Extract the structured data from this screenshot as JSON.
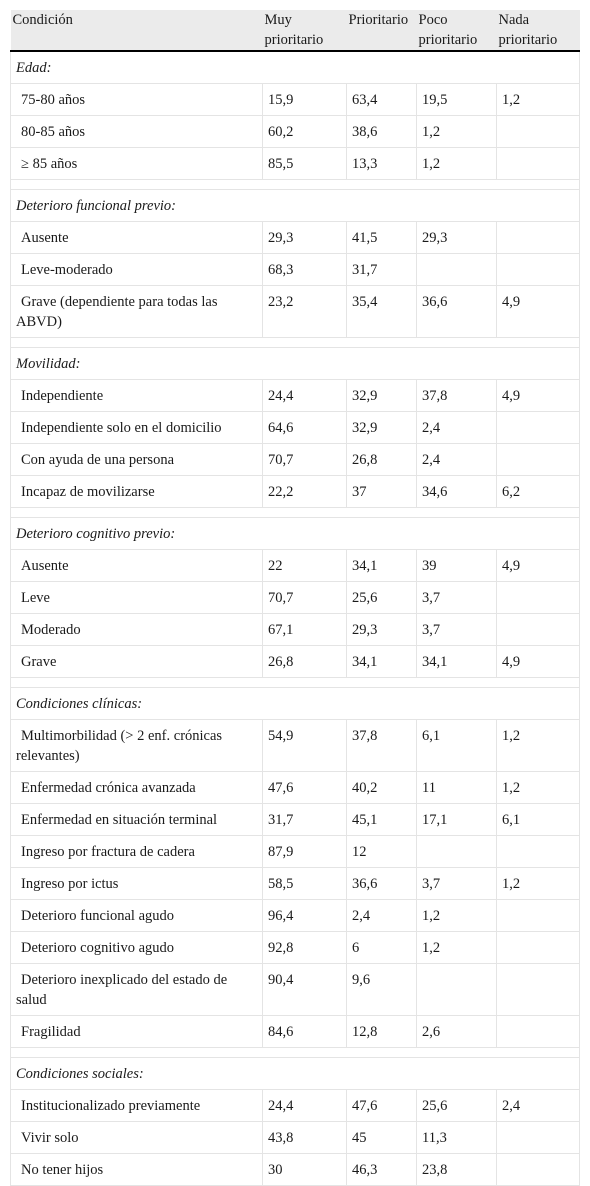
{
  "table": {
    "headers": {
      "condition": "Condición",
      "very": "Muy prioritario",
      "priority": "Prioritario",
      "low": "Poco prioritario",
      "none": "Nada prioritario"
    },
    "sections": [
      {
        "title": "Edad:",
        "rows": [
          {
            "label": "75-80 años",
            "v1": "15,9",
            "v2": "63,4",
            "v3": "19,5",
            "v4": "1,2"
          },
          {
            "label": "80-85 años",
            "v1": "60,2",
            "v2": "38,6",
            "v3": "1,2",
            "v4": ""
          },
          {
            "label": "≥ 85 años",
            "v1": "85,5",
            "v2": "13,3",
            "v3": "1,2",
            "v4": ""
          }
        ]
      },
      {
        "title": "Deterioro funcional previo:",
        "rows": [
          {
            "label": "Ausente",
            "v1": "29,3",
            "v2": "41,5",
            "v3": "29,3",
            "v4": ""
          },
          {
            "label": "Leve-moderado",
            "v1": "68,3",
            "v2": "31,7",
            "v3": "",
            "v4": ""
          },
          {
            "label": "Grave (dependiente para todas las ABVD)",
            "v1": "23,2",
            "v2": "35,4",
            "v3": "36,6",
            "v4": "4,9"
          }
        ]
      },
      {
        "title": "Movilidad:",
        "rows": [
          {
            "label": "Independiente",
            "v1": "24,4",
            "v2": "32,9",
            "v3": "37,8",
            "v4": "4,9"
          },
          {
            "label": "Independiente solo en el domicilio",
            "v1": "64,6",
            "v2": "32,9",
            "v3": "2,4",
            "v4": ""
          },
          {
            "label": "Con ayuda de una persona",
            "v1": "70,7",
            "v2": "26,8",
            "v3": "2,4",
            "v4": ""
          },
          {
            "label": "Incapaz de movilizarse",
            "v1": "22,2",
            "v2": "37",
            "v3": "34,6",
            "v4": "6,2"
          }
        ]
      },
      {
        "title": "Deterioro cognitivo previo:",
        "rows": [
          {
            "label": "Ausente",
            "v1": "22",
            "v2": "34,1",
            "v3": "39",
            "v4": "4,9"
          },
          {
            "label": "Leve",
            "v1": "70,7",
            "v2": "25,6",
            "v3": "3,7",
            "v4": ""
          },
          {
            "label": "Moderado",
            "v1": "67,1",
            "v2": "29,3",
            "v3": "3,7",
            "v4": ""
          },
          {
            "label": "Grave",
            "v1": "26,8",
            "v2": "34,1",
            "v3": "34,1",
            "v4": "4,9"
          }
        ]
      },
      {
        "title": "Condiciones clínicas:",
        "rows": [
          {
            "label": "Multimorbilidad (> 2 enf. crónicas relevantes)",
            "v1": "54,9",
            "v2": "37,8",
            "v3": "6,1",
            "v4": "1,2"
          },
          {
            "label": "Enfermedad crónica avanzada",
            "v1": "47,6",
            "v2": "40,2",
            "v3": "11",
            "v4": "1,2"
          },
          {
            "label": "Enfermedad en situación terminal",
            "v1": "31,7",
            "v2": "45,1",
            "v3": "17,1",
            "v4": "6,1"
          },
          {
            "label": "Ingreso por fractura de cadera",
            "v1": "87,9",
            "v2": "12",
            "v3": "",
            "v4": ""
          },
          {
            "label": "Ingreso por ictus",
            "v1": "58,5",
            "v2": "36,6",
            "v3": "3,7",
            "v4": "1,2"
          },
          {
            "label": "Deterioro funcional agudo",
            "v1": "96,4",
            "v2": "2,4",
            "v3": "1,2",
            "v4": ""
          },
          {
            "label": "Deterioro cognitivo agudo",
            "v1": "92,8",
            "v2": "6",
            "v3": "1,2",
            "v4": ""
          },
          {
            "label": "Deterioro inexplicado del estado de salud",
            "v1": "90,4",
            "v2": "9,6",
            "v3": "",
            "v4": ""
          },
          {
            "label": "Fragilidad",
            "v1": "84,6",
            "v2": "12,8",
            "v3": "2,6",
            "v4": ""
          }
        ]
      },
      {
        "title": "Condiciones sociales:",
        "rows": [
          {
            "label": "Institucionalizado previamente",
            "v1": "24,4",
            "v2": "47,6",
            "v3": "25,6",
            "v4": "2,4"
          },
          {
            "label": "Vivir solo",
            "v1": "43,8",
            "v2": "45",
            "v3": "11,3",
            "v4": ""
          },
          {
            "label": "No tener hijos",
            "v1": "30",
            "v2": "46,3",
            "v3": "23,8",
            "v4": ""
          }
        ]
      }
    ]
  }
}
